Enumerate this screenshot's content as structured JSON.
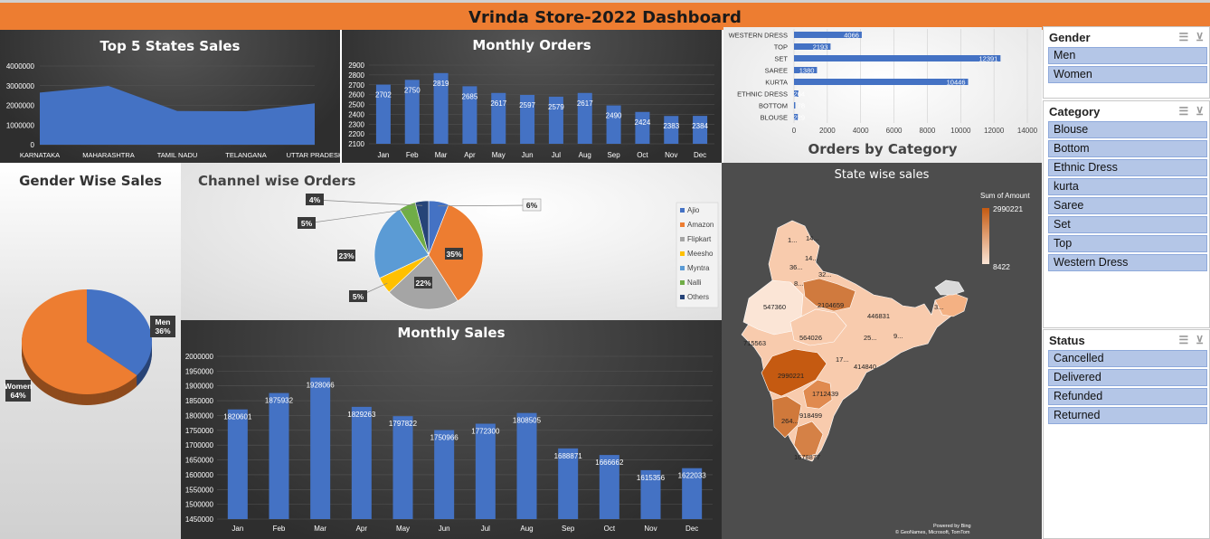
{
  "header": {
    "title": "Vrinda Store-2022 Dashboard"
  },
  "colors": {
    "accent": "#ED7D31",
    "bar_blue": "#4472C4",
    "slicer_item": "#B4C6E7"
  },
  "top_states": {
    "title": "Top 5 States Sales",
    "chart_data": {
      "type": "area",
      "categories": [
        "KARNATAKA",
        "MAHARASHTRA",
        "TAMIL NADU",
        "TELANGANA",
        "UTTAR PRADESH"
      ],
      "values": [
        2650000,
        2990221,
        1712439,
        1700000,
        2104659
      ],
      "ylim": [
        0,
        4000000
      ],
      "yticks": [
        "4000000",
        "3000000",
        "2000000",
        "1000000",
        "0"
      ]
    }
  },
  "monthly_orders": {
    "title": "Monthly Orders",
    "chart_data": {
      "type": "bar",
      "categories": [
        "Jan",
        "Feb",
        "Mar",
        "Apr",
        "May",
        "Jun",
        "Jul",
        "Aug",
        "Sep",
        "Oct",
        "Nov",
        "Dec"
      ],
      "values": [
        2702,
        2750,
        2819,
        2685,
        2617,
        2597,
        2579,
        2617,
        2490,
        2424,
        2383,
        2384
      ],
      "ylim": [
        2100,
        2900
      ],
      "yticks": [
        "2900",
        "2800",
        "2700",
        "2600",
        "2500",
        "2400",
        "2300",
        "2200",
        "2100"
      ]
    }
  },
  "orders_by_category": {
    "title": "Orders by Category",
    "chart_data": {
      "type": "bar",
      "orientation": "horizontal",
      "categories": [
        "WESTERN DRESS",
        "TOP",
        "SET",
        "SAREE",
        "KURTA",
        "ETHNIC DRESS",
        "BOTTOM",
        "BLOUSE"
      ],
      "values": [
        4066,
        2193,
        12391,
        1380,
        10446,
        264,
        78,
        229
      ],
      "xlim": [
        0,
        14000
      ],
      "xticks": [
        "0",
        "2000",
        "4000",
        "6000",
        "8000",
        "10000",
        "12000",
        "14000"
      ]
    }
  },
  "gender_wise": {
    "title": "Gender Wise Sales",
    "chart_data": {
      "type": "pie",
      "labels": [
        "Men",
        "Women"
      ],
      "percents": [
        "36%",
        "64%"
      ],
      "values": [
        36,
        64
      ],
      "colors": [
        "#4472C4",
        "#ED7D31"
      ]
    }
  },
  "channel_wise": {
    "title": "Channel wise Orders",
    "chart_data": {
      "type": "pie",
      "labels": [
        "Ajio",
        "Amazon",
        "Flipkart",
        "Meesho",
        "Myntra",
        "Nalli",
        "Others"
      ],
      "percents": [
        "6%",
        "35%",
        "22%",
        "5%",
        "23%",
        "5%",
        "4%"
      ],
      "values": [
        6,
        35,
        22,
        5,
        23,
        5,
        4
      ],
      "colors": [
        "#4472C4",
        "#ED7D31",
        "#A5A5A5",
        "#FFC000",
        "#5B9BD5",
        "#70AD47",
        "#264478"
      ]
    }
  },
  "monthly_sales": {
    "title": "Monthly Sales",
    "chart_data": {
      "type": "bar",
      "categories": [
        "Jan",
        "Feb",
        "Mar",
        "Apr",
        "May",
        "Jun",
        "Jul",
        "Aug",
        "Sep",
        "Oct",
        "Nov",
        "Dec"
      ],
      "values": [
        1820601,
        1875932,
        1928066,
        1829263,
        1797822,
        1750966,
        1772300,
        1808505,
        1688871,
        1666662,
        1615356,
        1622033
      ],
      "ylim": [
        1450000,
        2000000
      ],
      "yticks": [
        "2000000",
        "1950000",
        "1900000",
        "1850000",
        "1800000",
        "1750000",
        "1700000",
        "1650000",
        "1600000",
        "1550000",
        "1500000",
        "1450000"
      ]
    }
  },
  "state_map": {
    "title": "State wise sales",
    "legend_title": "Sum of Amount",
    "legend_max": "2990221",
    "legend_min": "8422",
    "labels": [
      "1...",
      "14...",
      "14...",
      "36...",
      "32...",
      "8...",
      "547360",
      "2104659",
      "446831",
      "3...",
      "564026",
      "25...",
      "9...",
      "715563",
      "17...",
      "414840",
      "2990221",
      "1712439",
      "918499",
      "264...",
      "1678877"
    ],
    "credit_1": "Powered by Bing",
    "credit_2": "© GeoNames, Microsoft, TomTom"
  },
  "slicers": {
    "gender": {
      "title": "Gender",
      "items": [
        "Men",
        "Women"
      ]
    },
    "category": {
      "title": "Category",
      "items": [
        "Blouse",
        "Bottom",
        "Ethnic Dress",
        "kurta",
        "Saree",
        "Set",
        "Top",
        "Western Dress"
      ]
    },
    "status": {
      "title": "Status",
      "items": [
        "Cancelled",
        "Delivered",
        "Refunded",
        "Returned"
      ]
    }
  }
}
